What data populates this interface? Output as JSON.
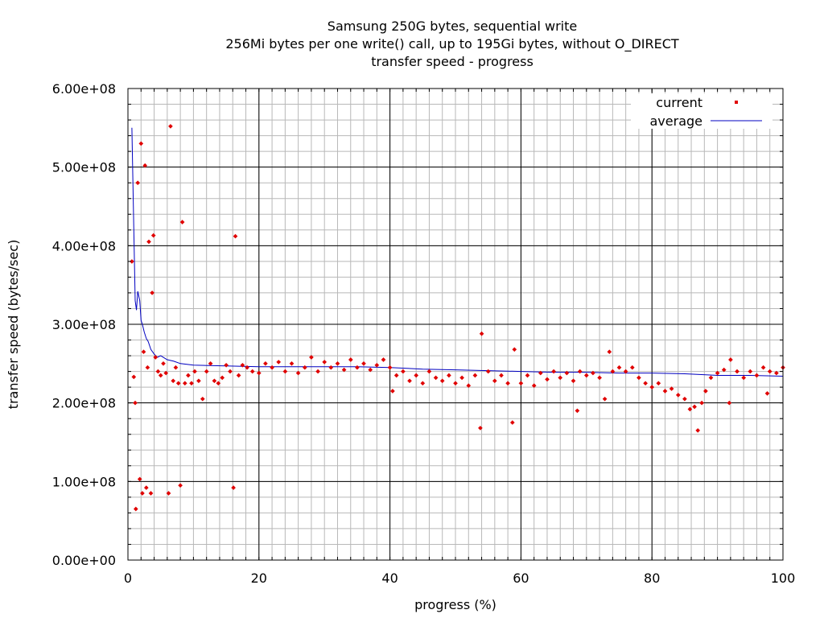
{
  "chart_data": {
    "type": "scatter",
    "title": [
      "Samsung 250G bytes, sequential write",
      "256Mi bytes per one write() call, up to 195Gi bytes, without O_DIRECT",
      "transfer speed - progress"
    ],
    "xlabel": "progress (%)",
    "ylabel": "transfer speed (bytes/sec)",
    "xlim": [
      0,
      100
    ],
    "ylim": [
      0,
      600000000
    ],
    "x_tick_values": [
      0,
      20,
      40,
      60,
      80,
      100
    ],
    "x_tick_labels": [
      "0",
      "20",
      "40",
      "60",
      "80",
      "100"
    ],
    "y_tick_values": [
      0,
      100000000,
      200000000,
      300000000,
      400000000,
      500000000,
      600000000
    ],
    "y_tick_labels": [
      "0.00e+00",
      "1.00e+08",
      "2.00e+08",
      "3.00e+08",
      "4.00e+08",
      "5.00e+08",
      "6.00e+08"
    ],
    "grid": true,
    "minor_grid": true,
    "legend_position": "top-right",
    "colors": {
      "current": "#e00000",
      "average": "#0000c0",
      "major_grid": "#000000",
      "minor_grid": "#b8b8b8"
    },
    "series": [
      {
        "name": "current",
        "style": "points",
        "points": [
          [
            0.6,
            380000000
          ],
          [
            0.9,
            233000000
          ],
          [
            1.1,
            200000000
          ],
          [
            1.2,
            65000000
          ],
          [
            1.5,
            480000000
          ],
          [
            1.8,
            103000000
          ],
          [
            2.0,
            530000000
          ],
          [
            2.2,
            85000000
          ],
          [
            2.4,
            265000000
          ],
          [
            2.6,
            502000000
          ],
          [
            2.8,
            92000000
          ],
          [
            3.0,
            245000000
          ],
          [
            3.2,
            405000000
          ],
          [
            3.5,
            85000000
          ],
          [
            3.7,
            340000000
          ],
          [
            3.9,
            413000000
          ],
          [
            4.2,
            258000000
          ],
          [
            4.6,
            240000000
          ],
          [
            5.0,
            235000000
          ],
          [
            5.4,
            250000000
          ],
          [
            5.8,
            238000000
          ],
          [
            6.2,
            85000000
          ],
          [
            6.5,
            552000000
          ],
          [
            6.9,
            228000000
          ],
          [
            7.3,
            245000000
          ],
          [
            7.7,
            225000000
          ],
          [
            8.0,
            95000000
          ],
          [
            8.3,
            430000000
          ],
          [
            8.7,
            225000000
          ],
          [
            9.2,
            235000000
          ],
          [
            9.7,
            225000000
          ],
          [
            10.2,
            240000000
          ],
          [
            10.8,
            228000000
          ],
          [
            11.4,
            205000000
          ],
          [
            12.0,
            240000000
          ],
          [
            12.6,
            250000000
          ],
          [
            13.2,
            228000000
          ],
          [
            13.8,
            225000000
          ],
          [
            14.4,
            232000000
          ],
          [
            15.0,
            248000000
          ],
          [
            15.6,
            240000000
          ],
          [
            16.1,
            92000000
          ],
          [
            16.4,
            412000000
          ],
          [
            16.9,
            235000000
          ],
          [
            17.5,
            248000000
          ],
          [
            18.2,
            245000000
          ],
          [
            19.0,
            240000000
          ],
          [
            20.0,
            238000000
          ],
          [
            21.0,
            250000000
          ],
          [
            22.0,
            245000000
          ],
          [
            23.0,
            252000000
          ],
          [
            24.0,
            240000000
          ],
          [
            25.0,
            250000000
          ],
          [
            26.0,
            238000000
          ],
          [
            27.0,
            245000000
          ],
          [
            28.0,
            258000000
          ],
          [
            29.0,
            240000000
          ],
          [
            30.0,
            252000000
          ],
          [
            31.0,
            245000000
          ],
          [
            32.0,
            250000000
          ],
          [
            33.0,
            242000000
          ],
          [
            34.0,
            255000000
          ],
          [
            35.0,
            245000000
          ],
          [
            36.0,
            250000000
          ],
          [
            37.0,
            242000000
          ],
          [
            38.0,
            248000000
          ],
          [
            39.0,
            255000000
          ],
          [
            40.0,
            245000000
          ],
          [
            40.4,
            215000000
          ],
          [
            41.0,
            235000000
          ],
          [
            42.0,
            240000000
          ],
          [
            43.0,
            228000000
          ],
          [
            44.0,
            235000000
          ],
          [
            45.0,
            225000000
          ],
          [
            46.0,
            240000000
          ],
          [
            47.0,
            232000000
          ],
          [
            48.0,
            228000000
          ],
          [
            49.0,
            235000000
          ],
          [
            50.0,
            225000000
          ],
          [
            51.0,
            232000000
          ],
          [
            52.0,
            222000000
          ],
          [
            53.0,
            235000000
          ],
          [
            53.8,
            168000000
          ],
          [
            54.0,
            288000000
          ],
          [
            55.0,
            240000000
          ],
          [
            56.0,
            228000000
          ],
          [
            57.0,
            235000000
          ],
          [
            58.0,
            225000000
          ],
          [
            58.7,
            175000000
          ],
          [
            59.0,
            268000000
          ],
          [
            60.0,
            225000000
          ],
          [
            61.0,
            235000000
          ],
          [
            62.0,
            222000000
          ],
          [
            63.0,
            238000000
          ],
          [
            64.0,
            230000000
          ],
          [
            65.0,
            240000000
          ],
          [
            66.0,
            232000000
          ],
          [
            67.0,
            238000000
          ],
          [
            68.0,
            228000000
          ],
          [
            68.6,
            190000000
          ],
          [
            69.0,
            240000000
          ],
          [
            70.0,
            235000000
          ],
          [
            71.0,
            238000000
          ],
          [
            72.0,
            232000000
          ],
          [
            72.8,
            205000000
          ],
          [
            73.5,
            265000000
          ],
          [
            74.0,
            240000000
          ],
          [
            75.0,
            245000000
          ],
          [
            76.0,
            240000000
          ],
          [
            77.0,
            245000000
          ],
          [
            78.0,
            232000000
          ],
          [
            79.0,
            225000000
          ],
          [
            80.0,
            220000000
          ],
          [
            81.0,
            225000000
          ],
          [
            82.0,
            215000000
          ],
          [
            83.0,
            218000000
          ],
          [
            84.0,
            210000000
          ],
          [
            85.0,
            205000000
          ],
          [
            85.8,
            192000000
          ],
          [
            86.5,
            195000000
          ],
          [
            87.0,
            165000000
          ],
          [
            87.6,
            200000000
          ],
          [
            88.2,
            215000000
          ],
          [
            89.0,
            232000000
          ],
          [
            90.0,
            238000000
          ],
          [
            91.0,
            242000000
          ],
          [
            91.8,
            200000000
          ],
          [
            92.0,
            255000000
          ],
          [
            93.0,
            240000000
          ],
          [
            94.0,
            232000000
          ],
          [
            95.0,
            240000000
          ],
          [
            96.0,
            235000000
          ],
          [
            97.0,
            245000000
          ],
          [
            97.6,
            212000000
          ],
          [
            98.0,
            240000000
          ],
          [
            99.0,
            238000000
          ],
          [
            100.0,
            245000000
          ]
        ]
      },
      {
        "name": "average",
        "style": "line",
        "points": [
          [
            0.6,
            550000000
          ],
          [
            0.9,
            420000000
          ],
          [
            1.1,
            330000000
          ],
          [
            1.3,
            318000000
          ],
          [
            1.5,
            342000000
          ],
          [
            1.8,
            330000000
          ],
          [
            2.0,
            305000000
          ],
          [
            2.2,
            300000000
          ],
          [
            2.5,
            290000000
          ],
          [
            2.8,
            282000000
          ],
          [
            3.1,
            278000000
          ],
          [
            3.5,
            268000000
          ],
          [
            4.0,
            262000000
          ],
          [
            4.5,
            258000000
          ],
          [
            5.0,
            260000000
          ],
          [
            6.0,
            255000000
          ],
          [
            7.0,
            253000000
          ],
          [
            8.0,
            250000000
          ],
          [
            10.0,
            248000000
          ],
          [
            15.0,
            247000000
          ],
          [
            20.0,
            246000000
          ],
          [
            25.0,
            246000000
          ],
          [
            30.0,
            246000000
          ],
          [
            35.0,
            246000000
          ],
          [
            40.0,
            245000000
          ],
          [
            45.0,
            243000000
          ],
          [
            50.0,
            242000000
          ],
          [
            55.0,
            241000000
          ],
          [
            60.0,
            240000000
          ],
          [
            65.0,
            239000000
          ],
          [
            70.0,
            239000000
          ],
          [
            75.0,
            238000000
          ],
          [
            80.0,
            238000000
          ],
          [
            85.0,
            237000000
          ],
          [
            90.0,
            235000000
          ],
          [
            95.0,
            235000000
          ],
          [
            100.0,
            234000000
          ]
        ]
      }
    ]
  }
}
